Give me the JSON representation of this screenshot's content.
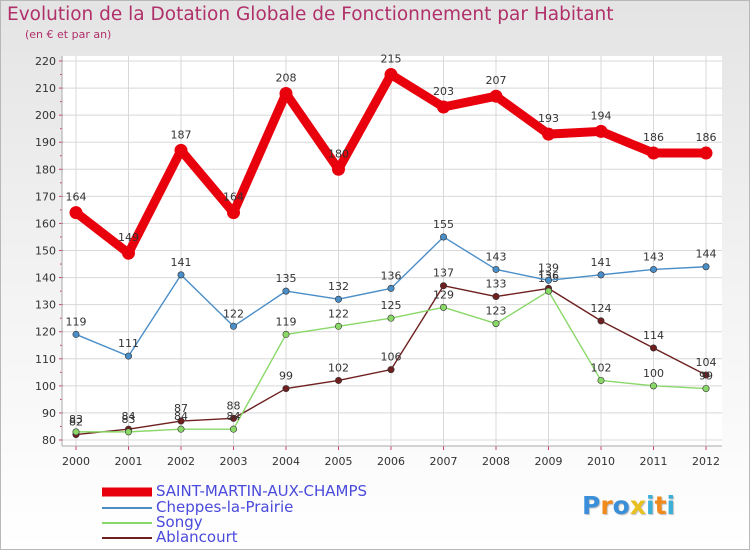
{
  "title": "Evolution de la Dotation Globale de Fonctionnement par Habitant",
  "subtitle": "(en € et par an)",
  "brand": {
    "letters": [
      "P",
      "r",
      "o",
      "x",
      "i",
      "t",
      "i"
    ],
    "colors": [
      "#3a8fd8",
      "#f08a1c",
      "#3a8fd8",
      "#e8c020",
      "#3ab0d8",
      "#f08a1c",
      "#3ab0d8"
    ]
  },
  "chart_data": {
    "type": "line",
    "title": "Evolution de la Dotation Globale de Fonctionnement par Habitant",
    "subtitle": "(en € et par an)",
    "x": [
      "2000",
      "2001",
      "2002",
      "2003",
      "2004",
      "2005",
      "2006",
      "2007",
      "2008",
      "2009",
      "2010",
      "2011",
      "2012"
    ],
    "ylim": [
      80,
      220
    ],
    "yticks": [
      80,
      90,
      100,
      110,
      120,
      130,
      140,
      150,
      160,
      170,
      180,
      190,
      200,
      210,
      220
    ],
    "grid": true,
    "legend": "bottom-left",
    "series": [
      {
        "name": "SAINT-MARTIN-AUX-CHAMPS",
        "color": "#e8000d",
        "values": [
          164,
          149,
          187,
          164,
          208,
          180,
          215,
          203,
          207,
          193,
          194,
          186,
          186
        ]
      },
      {
        "name": "Cheppes-la-Prairie",
        "color": "#4a8ec8",
        "values": [
          119,
          111,
          141,
          122,
          135,
          132,
          136,
          155,
          143,
          139,
          141,
          143,
          144
        ]
      },
      {
        "name": "Songy",
        "color": "#8ad868",
        "values": [
          83,
          83,
          84,
          84,
          119,
          122,
          125,
          129,
          123,
          135,
          102,
          100,
          99
        ]
      },
      {
        "name": "Ablancourt",
        "color": "#6e2020",
        "values": [
          82,
          84,
          87,
          88,
          99,
          102,
          106,
          137,
          133,
          136,
          124,
          114,
          104
        ]
      }
    ]
  }
}
